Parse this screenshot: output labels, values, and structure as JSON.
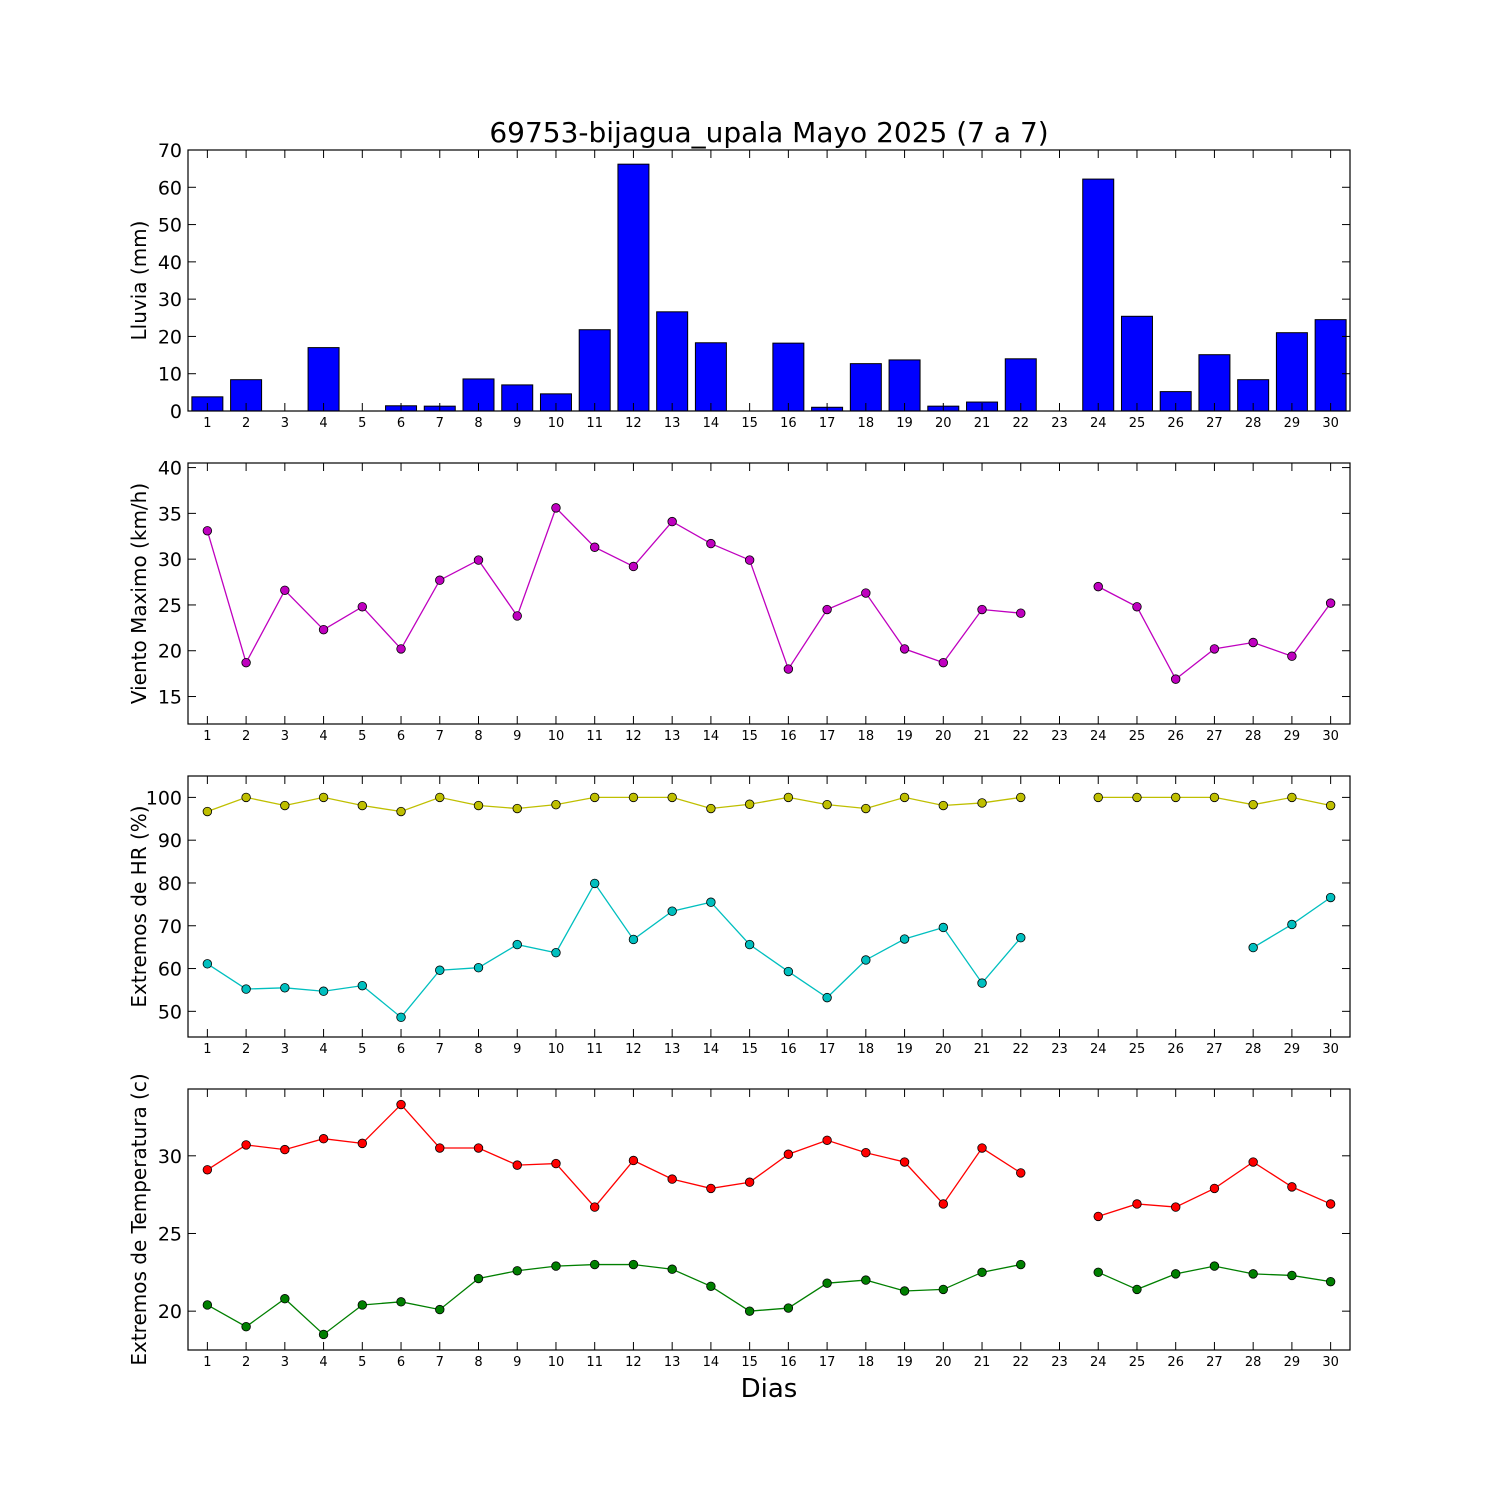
{
  "chart_data": {
    "type": "multi-panel",
    "title": "69753-bijagua_upala Mayo 2025  (7 a 7)",
    "xlabel": "Dias",
    "x": [
      1,
      2,
      3,
      4,
      5,
      6,
      7,
      8,
      9,
      10,
      11,
      12,
      13,
      14,
      15,
      16,
      17,
      18,
      19,
      20,
      21,
      22,
      23,
      24,
      25,
      26,
      27,
      28,
      29,
      30
    ],
    "panels": [
      {
        "id": "lluvia",
        "type": "bar",
        "ylabel": "Lluvia (mm)",
        "ylim": [
          0,
          70
        ],
        "yticks": [
          0,
          10,
          20,
          30,
          40,
          50,
          60,
          70
        ],
        "series": [
          {
            "color": "#0000ff",
            "values": [
              3.8,
              8.4,
              0,
              17,
              0,
              1.4,
              1.3,
              8.6,
              7.0,
              4.6,
              21.8,
              66.2,
              26.6,
              18.3,
              0,
              18.2,
              1.0,
              12.7,
              13.7,
              1.3,
              2.4,
              14.0,
              0,
              62.2,
              25.4,
              5.2,
              15.1,
              8.4,
              21.0,
              24.5
            ]
          }
        ]
      },
      {
        "id": "viento",
        "type": "line",
        "ylabel": "Viento Maximo (km/h)",
        "ylim": [
          12,
          40.5
        ],
        "yticks": [
          15,
          20,
          25,
          30,
          35,
          40
        ],
        "series": [
          {
            "color": "#bf00bf",
            "values": [
              33.1,
              18.7,
              26.6,
              22.3,
              24.8,
              20.2,
              27.7,
              29.9,
              23.8,
              35.6,
              31.3,
              29.2,
              34.1,
              31.7,
              29.9,
              18.0,
              24.5,
              26.3,
              20.2,
              18.7,
              24.5,
              24.1,
              null,
              27.0,
              24.8,
              16.9,
              20.2,
              20.9,
              19.4,
              25.2
            ]
          }
        ]
      },
      {
        "id": "hr",
        "type": "line",
        "ylabel": "Extremos de HR (%)",
        "ylim": [
          44,
          105
        ],
        "yticks": [
          50,
          60,
          70,
          80,
          90,
          100
        ],
        "series": [
          {
            "color": "#bfbf00",
            "values": [
              96.7,
              100,
              98.1,
              100,
              98.1,
              96.7,
              100,
              98.1,
              97.4,
              98.3,
              100,
              100,
              100,
              97.4,
              98.4,
              100,
              98.3,
              97.4,
              100,
              98.1,
              98.7,
              100,
              null,
              100,
              100,
              100,
              100,
              98.3,
              100,
              98.1
            ]
          },
          {
            "color": "#00bfbf",
            "values": [
              61.1,
              55.2,
              55.5,
              54.7,
              56.0,
              48.6,
              59.6,
              60.2,
              65.6,
              63.7,
              79.9,
              66.8,
              73.4,
              75.5,
              65.6,
              59.3,
              53.2,
              62.0,
              66.9,
              69.6,
              56.6,
              67.2,
              null,
              null,
              null,
              null,
              null,
              64.9,
              70.3,
              76.6
            ]
          }
        ]
      },
      {
        "id": "temp",
        "type": "line",
        "ylabel": "Extremos de Temperatura (c)",
        "ylim": [
          17.5,
          34.3
        ],
        "yticks": [
          20,
          25,
          30
        ],
        "series": [
          {
            "color": "#ff0000",
            "values": [
              29.1,
              30.7,
              30.4,
              31.1,
              30.8,
              33.3,
              30.5,
              30.5,
              29.4,
              29.5,
              26.7,
              29.7,
              28.5,
              27.9,
              28.3,
              30.1,
              31.0,
              30.2,
              29.6,
              26.9,
              30.5,
              28.9,
              null,
              26.1,
              26.9,
              26.7,
              27.9,
              29.6,
              28.0,
              26.9
            ]
          },
          {
            "color": "#007f00",
            "values": [
              20.4,
              19.0,
              20.8,
              18.5,
              20.4,
              20.6,
              20.1,
              22.1,
              22.6,
              22.9,
              23.0,
              23.0,
              22.7,
              21.6,
              20.0,
              20.2,
              21.8,
              22.0,
              21.3,
              21.4,
              22.5,
              23.0,
              null,
              22.5,
              21.4,
              22.4,
              22.9,
              22.4,
              22.3,
              21.9
            ]
          }
        ]
      }
    ]
  }
}
